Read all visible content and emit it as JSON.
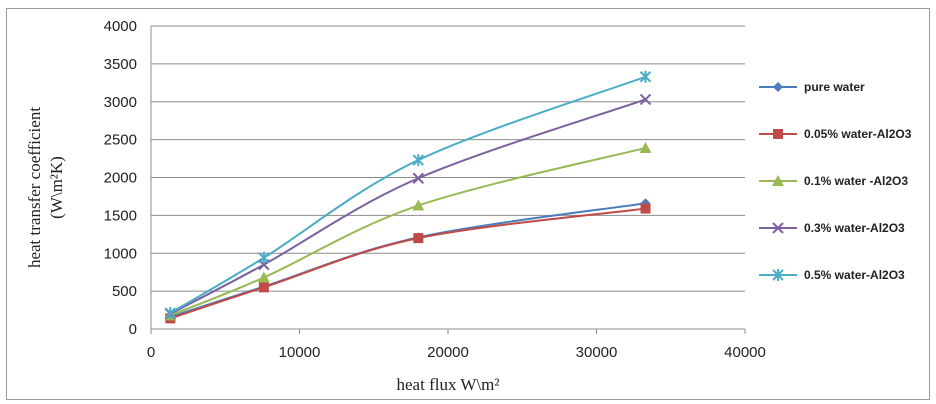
{
  "chart_data": {
    "type": "line",
    "xlabel": "heat flux W\\m²",
    "ylabel_line1": "heat transfer coefficient",
    "ylabel_line2": "(W\\m²K)",
    "xlim": [
      0,
      40000
    ],
    "ylim": [
      0,
      4000
    ],
    "x_ticks": [
      0,
      10000,
      20000,
      30000,
      40000
    ],
    "y_ticks": [
      0,
      500,
      1000,
      1500,
      2000,
      2500,
      3000,
      3500,
      4000
    ],
    "grid": "horizontal",
    "legend_position": "right",
    "x": [
      1300,
      7600,
      18000,
      33300
    ],
    "series": [
      {
        "name": "pure water",
        "values": [
          160,
          560,
          1210,
          1660
        ],
        "color": "#4a7ebb",
        "marker": "diamond"
      },
      {
        "name": "0.05% water-Al2O3",
        "values": [
          140,
          550,
          1200,
          1590
        ],
        "color": "#be4b48",
        "marker": "square"
      },
      {
        "name": "0.1% water -Al2O3",
        "values": [
          180,
          680,
          1630,
          2390
        ],
        "color": "#98b954",
        "marker": "triangle"
      },
      {
        "name": "0.3% water-Al2O3",
        "values": [
          200,
          850,
          1990,
          3030
        ],
        "color": "#7d60a0",
        "marker": "x"
      },
      {
        "name": "0.5% water-Al2O3",
        "values": [
          210,
          940,
          2230,
          3330
        ],
        "color": "#4bacc6",
        "marker": "star"
      }
    ]
  }
}
